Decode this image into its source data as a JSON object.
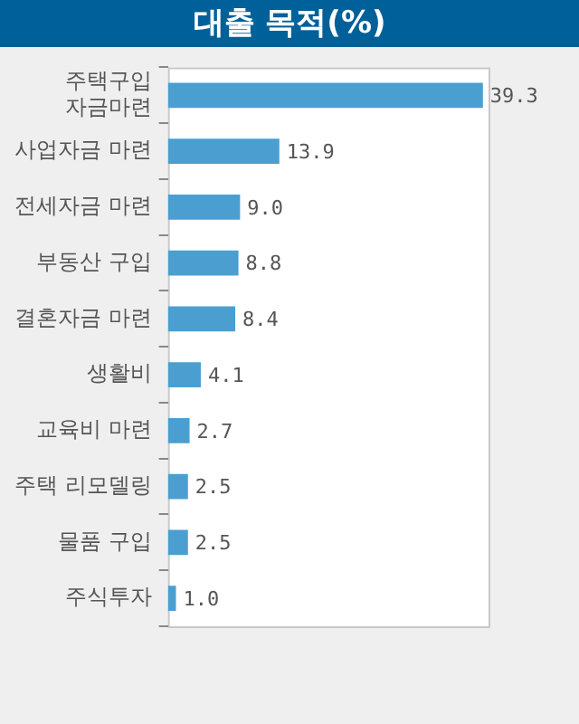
{
  "chart_data": {
    "type": "bar",
    "orientation": "horizontal",
    "title": "대출 목적(%)",
    "categories": [
      "주택구입\n자금마련",
      "사업자금 마련",
      "전세자금 마련",
      "부동산 구입",
      "결혼자금 마련",
      "생활비",
      "교육비 마련",
      "주택 리모델링",
      "물품 구입",
      "주식투자"
    ],
    "values": [
      39.3,
      13.9,
      9.0,
      8.8,
      8.4,
      4.1,
      2.7,
      2.5,
      2.5,
      1.0
    ],
    "value_labels": [
      "39.3",
      "13.9",
      "9.0",
      "8.8",
      "8.4",
      "4.1",
      "2.7",
      "2.5",
      "2.5",
      "1.0"
    ],
    "color": "#4a9fd0",
    "legend": false
  }
}
